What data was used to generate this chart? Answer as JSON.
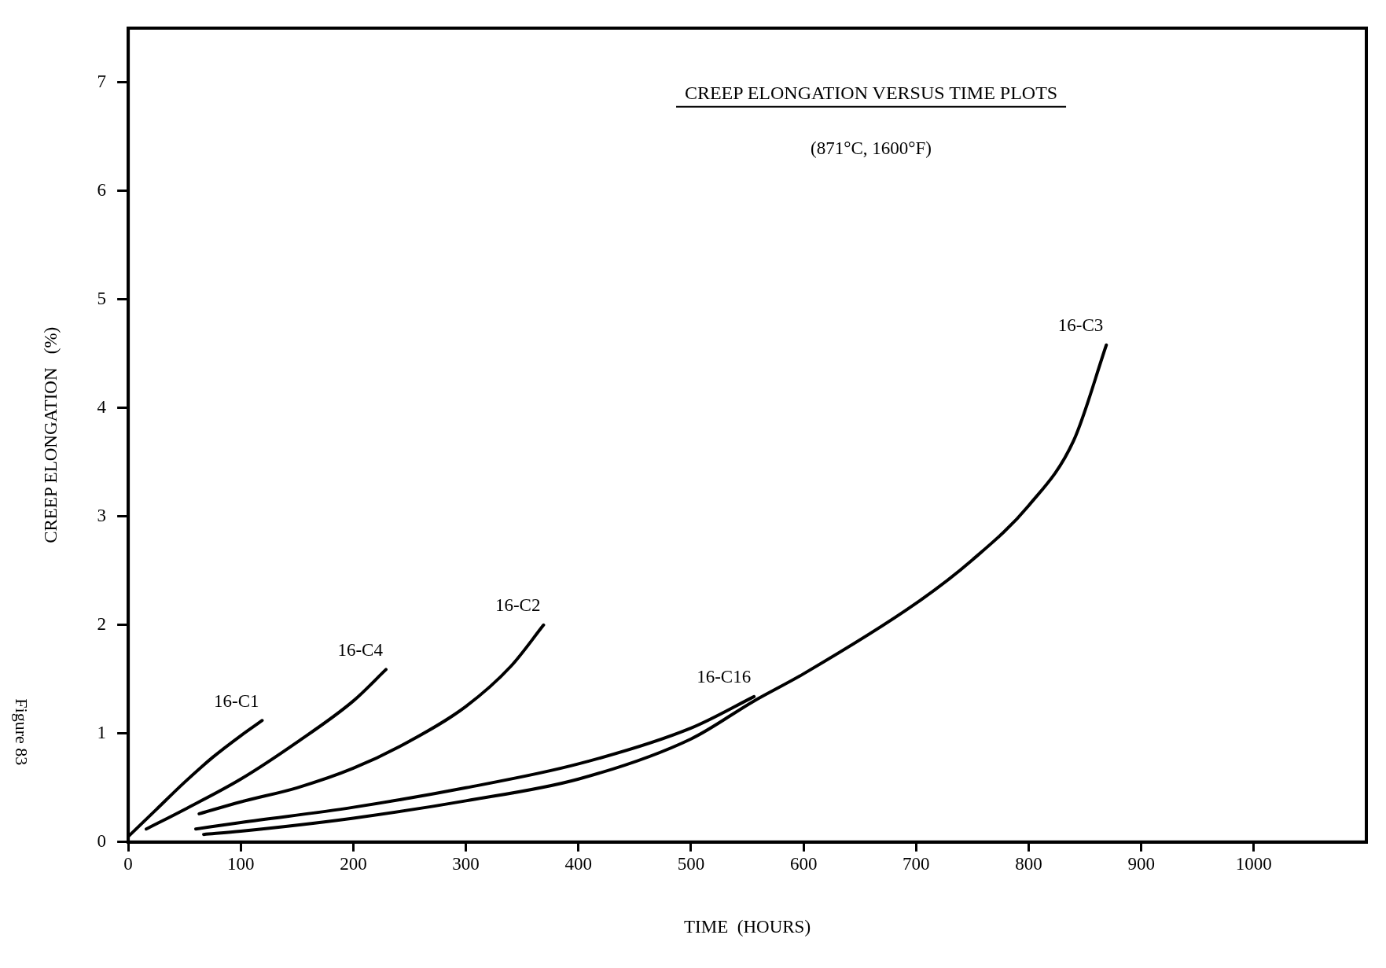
{
  "chart_data": {
    "type": "line",
    "title": "CREEP ELONGATION VERSUS TIME PLOTS",
    "subtitle": "(871°C, 1600°F)",
    "xlabel": "TIME  (HOURS)",
    "ylabel": "CREEP ELONGATION   (%)",
    "annotations": [
      "Figure 83"
    ],
    "xlim": [
      0,
      1100
    ],
    "ylim": [
      0,
      7.5
    ],
    "xticks": [
      0,
      100,
      200,
      300,
      400,
      500,
      600,
      700,
      800,
      900,
      1000
    ],
    "yticks": [
      0,
      1,
      2,
      3,
      4,
      5,
      6,
      7
    ],
    "grid": false,
    "legend": false,
    "marker": "none",
    "line_style": "solid",
    "series": [
      {
        "name": "16-C1",
        "color": "#000000",
        "x": [
          0,
          25,
          50,
          75,
          100,
          119
        ],
        "values": [
          0.05,
          0.3,
          0.55,
          0.78,
          0.98,
          1.12
        ]
      },
      {
        "name": "16-C4",
        "color": "#000000",
        "x": [
          16,
          50,
          100,
          150,
          200,
          229
        ],
        "values": [
          0.12,
          0.3,
          0.58,
          0.92,
          1.3,
          1.59
        ]
      },
      {
        "name": "16-C2",
        "color": "#000000",
        "x": [
          63,
          100,
          150,
          200,
          250,
          300,
          340,
          369
        ],
        "values": [
          0.26,
          0.37,
          0.5,
          0.68,
          0.93,
          1.25,
          1.62,
          2.0
        ]
      },
      {
        "name": "16-C16",
        "color": "#000000",
        "x": [
          60,
          100,
          200,
          300,
          400,
          500,
          556
        ],
        "values": [
          0.12,
          0.18,
          0.32,
          0.5,
          0.72,
          1.05,
          1.34
        ]
      },
      {
        "name": "16-C3",
        "color": "#000000",
        "x": [
          67,
          100,
          200,
          300,
          400,
          500,
          556,
          600,
          700,
          750,
          800,
          840,
          869
        ],
        "values": [
          0.07,
          0.1,
          0.22,
          0.38,
          0.58,
          0.95,
          1.3,
          1.55,
          2.2,
          2.6,
          3.1,
          3.7,
          4.58
        ]
      }
    ]
  }
}
